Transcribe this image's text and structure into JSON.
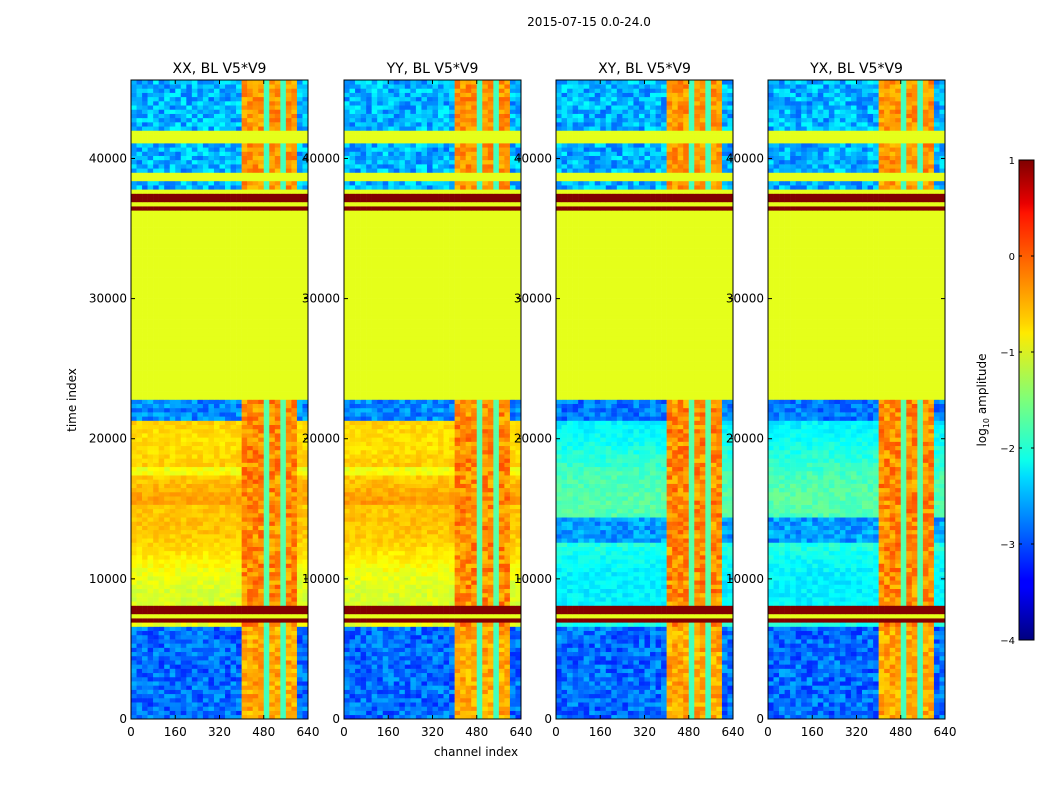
{
  "chart_data": {
    "type": "heatmap",
    "suptitle": "2015-07-15 0.0-24.0",
    "xlabel": "channel index",
    "ylabel": "time index",
    "xlim": [
      0,
      640
    ],
    "ylim": [
      0,
      45600
    ],
    "xticks": [
      "0",
      "160",
      "320",
      "480",
      "640"
    ],
    "yticks": [
      "0",
      "10000",
      "20000",
      "30000",
      "40000"
    ],
    "panels": [
      {
        "title": "XX, BL V5*V9",
        "pol": "auto"
      },
      {
        "title": "YY, BL V5*V9",
        "pol": "auto"
      },
      {
        "title": "XY, BL V5*V9",
        "pol": "cross"
      },
      {
        "title": "YX, BL V5*V9",
        "pol": "cross"
      }
    ],
    "colorbar": {
      "label": "log",
      "label_sub": "10",
      "label_rest": " amplitude",
      "range": [
        -4,
        1
      ],
      "ticks": [
        "1",
        "0",
        "−1",
        "−2",
        "−3",
        "−4"
      ],
      "colormap": "jet"
    },
    "flagged_value_log10": -1,
    "flagged_time_rows": [
      [
        22900,
        36300
      ],
      [
        38500,
        38900
      ],
      [
        41200,
        42100
      ]
    ],
    "saturated_time_rows": [
      [
        36300,
        37800
      ],
      [
        6800,
        8100
      ]
    ],
    "rfi_channel_band": [
      400,
      600
    ]
  },
  "colors": {
    "axis": "#000000",
    "background": "#ffffff"
  }
}
